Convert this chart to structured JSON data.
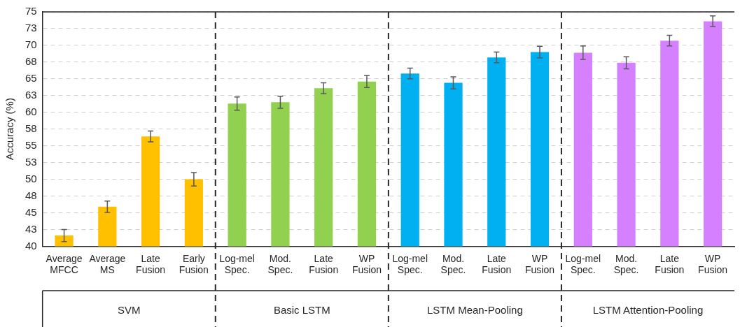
{
  "chart_data": {
    "type": "bar",
    "ylabel": "Accuracy (%)",
    "categories": [
      "Average MFCC",
      "Average MS",
      "Late Fusion",
      "Early Fusion",
      "Log-mel Spec.",
      "Mod. Spec.",
      "Late Fusion",
      "WP Fusion",
      "Log-mel Spec.",
      "Mod. Spec.",
      "Late Fusion",
      "WP Fusion",
      "Log-mel Spec.",
      "Mod. Spec.",
      "Late Fusion",
      "WP Fusion"
    ],
    "series": [
      {
        "name": "SVM",
        "color": "#ffc000",
        "values": [
          41.6,
          45.9,
          56.4,
          50.0,
          null,
          null,
          null,
          null,
          null,
          null,
          null,
          null,
          null,
          null,
          null,
          null
        ],
        "errors": [
          0.9,
          0.85,
          0.8,
          1.0,
          null,
          null,
          null,
          null,
          null,
          null,
          null,
          null,
          null,
          null,
          null,
          null
        ]
      },
      {
        "name": "Basic LSTM",
        "color": "#92d050",
        "values": [
          null,
          null,
          null,
          null,
          61.3,
          61.5,
          63.6,
          64.6,
          null,
          null,
          null,
          null,
          null,
          null,
          null,
          null
        ],
        "errors": [
          null,
          null,
          null,
          null,
          1.0,
          0.9,
          0.8,
          0.9,
          null,
          null,
          null,
          null,
          null,
          null,
          null,
          null
        ]
      },
      {
        "name": "LSTM Mean-Pooling",
        "color": "#00b0f0",
        "values": [
          null,
          null,
          null,
          null,
          null,
          null,
          null,
          null,
          65.8,
          64.4,
          68.2,
          69.0,
          null,
          null,
          null,
          null
        ],
        "errors": [
          null,
          null,
          null,
          null,
          null,
          null,
          null,
          null,
          0.8,
          0.9,
          0.8,
          0.85,
          null,
          null,
          null,
          null
        ]
      },
      {
        "name": "LSTM Attention-Pooling",
        "color": "#d580ff",
        "values": [
          null,
          null,
          null,
          null,
          null,
          null,
          null,
          null,
          null,
          null,
          null,
          null,
          68.9,
          67.4,
          70.7,
          73.6
        ],
        "errors": [
          null,
          null,
          null,
          null,
          null,
          null,
          null,
          null,
          null,
          null,
          null,
          null,
          1.0,
          0.9,
          0.8,
          0.8
        ]
      }
    ],
    "ylim": [
      40,
      75
    ],
    "yticks": [
      40,
      {
        "value": 42.5,
        "label": "43"
      },
      45,
      {
        "value": 47.5,
        "label": "48"
      },
      50,
      {
        "value": 52.5,
        "label": "53"
      },
      55,
      {
        "value": 57.5,
        "label": "58"
      },
      60,
      {
        "value": 62.5,
        "label": "63"
      },
      65,
      {
        "value": 67.5,
        "label": "68"
      },
      70,
      {
        "value": 72.5,
        "label": "73"
      },
      75
    ],
    "grid": "y",
    "legend": false
  }
}
